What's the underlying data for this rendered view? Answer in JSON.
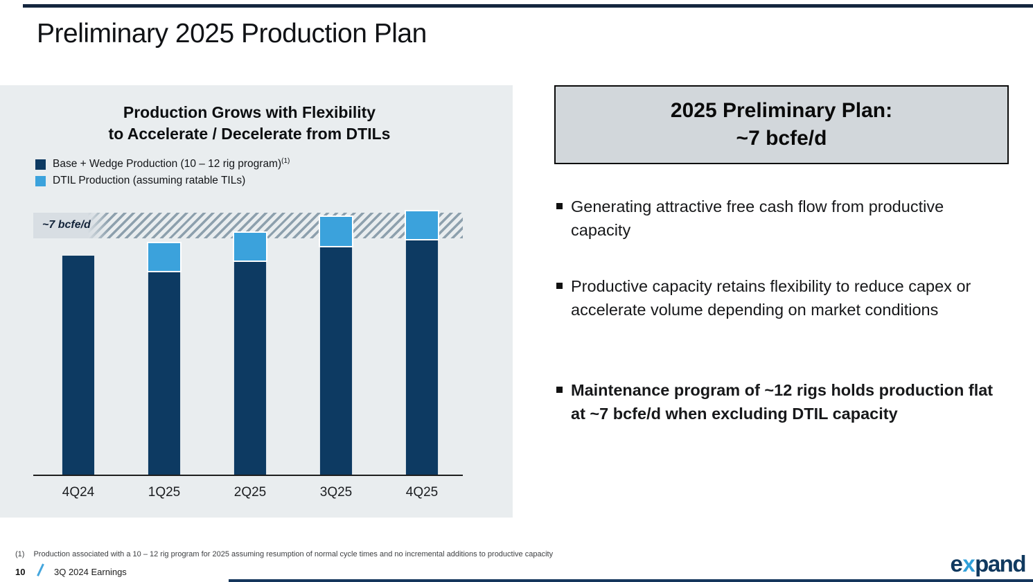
{
  "slide": {
    "title": "Preliminary 2025 Production Plan"
  },
  "chart_panel": {
    "title_line1": "Production Grows with Flexibility",
    "title_line2": "to Accelerate / Decelerate from DTILs",
    "legend": [
      {
        "label": "Base + Wedge Production (10 – 12 rig program)",
        "sup": "(1)"
      },
      {
        "label": "DTIL Production (assuming ratable TILs)",
        "sup": ""
      }
    ]
  },
  "chart_data": {
    "type": "bar",
    "stacked": true,
    "title": "Production Grows with Flexibility to Accelerate / Decelerate from DTILs",
    "categories": [
      "4Q24",
      "1Q25",
      "2Q25",
      "3Q25",
      "4Q25"
    ],
    "series": [
      {
        "name": "Base + Wedge Production (10 – 12 rig program)(1)",
        "color": "#0d3a62",
        "values": [
          6.15,
          5.7,
          6.0,
          6.4,
          6.6
        ]
      },
      {
        "name": "DTIL Production (assuming ratable TILs)",
        "color": "#3ba2dc",
        "values": [
          0,
          0.8,
          0.8,
          0.85,
          0.8
        ]
      }
    ],
    "xlabel": "",
    "ylabel": "",
    "ylim": [
      0,
      8
    ],
    "y_axis_visible": false,
    "grid": false,
    "legend_position": "top-left",
    "annotation_band": {
      "label": "~7 bcfe/d",
      "from": 6.65,
      "to": 7.35,
      "style": "hatched"
    },
    "units": "bcfe/d"
  },
  "right_panel": {
    "box_line1": "2025 Preliminary Plan:",
    "box_line2": "~7 bcfe/d",
    "bullets": [
      {
        "text": "Generating attractive free cash flow from productive capacity",
        "bold": false
      },
      {
        "text": "Productive capacity retains flexibility to reduce capex or accelerate volume depending on market conditions",
        "bold": false
      },
      {
        "text": "Maintenance program of ~12 rigs holds production flat at ~7 bcfe/d when excluding DTIL capacity",
        "bold": true
      }
    ]
  },
  "footer": {
    "footnote_marker": "(1)",
    "footnote_text": "Production associated with a 10 – 12 rig program for 2025 assuming resumption of normal cycle times and no incremental additions to productive capacity",
    "page_number": "10",
    "label": "3Q 2024 Earnings",
    "logo_pre": "e",
    "logo_x": "x",
    "logo_post": "pand"
  },
  "colors": {
    "navy": "#0d3a62",
    "light_blue": "#3ba2dc",
    "panel_bg": "#e9edef",
    "box_bg": "#d2d7db",
    "rule_navy": "#14365c"
  }
}
